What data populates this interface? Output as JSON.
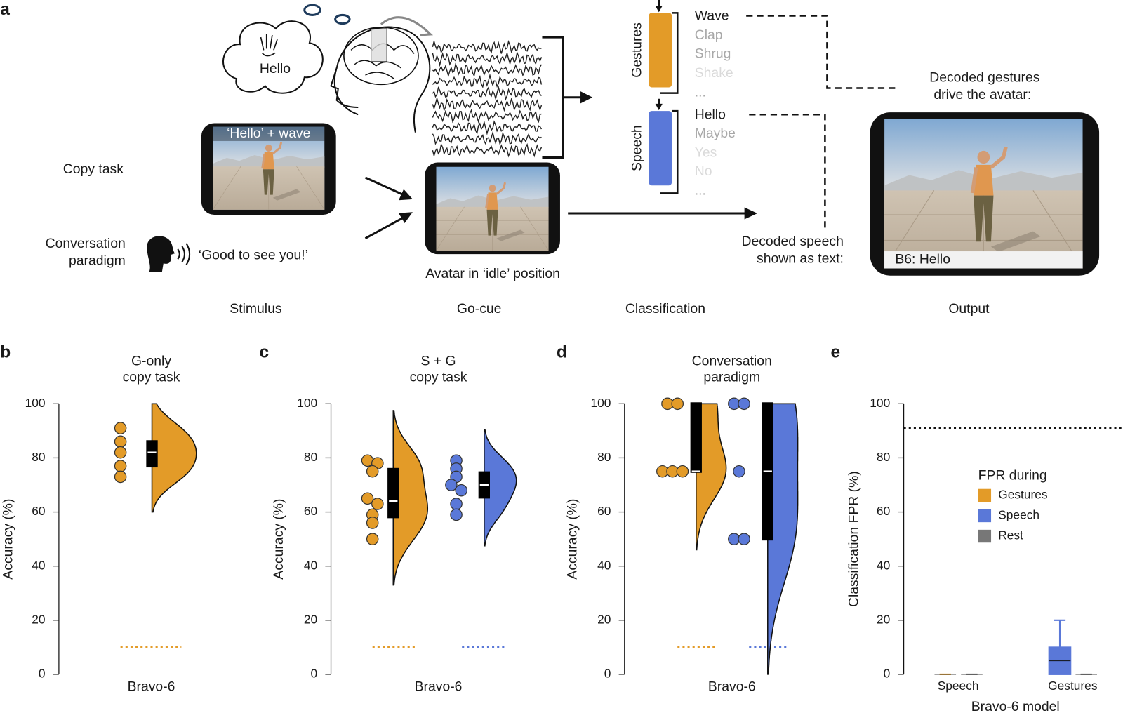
{
  "panel_a": {
    "label": "a",
    "thought": "Hello",
    "copy_stimulus_caption": "‘Hello’ + wave",
    "copy_task": "Copy task",
    "conversation": [
      "Conversation",
      "paradigm"
    ],
    "conversation_stimulus": "‘Good to see you!’",
    "go_cue_caption": "Avatar in ‘idle’ position",
    "gestures_label": "Gestures",
    "gesture_classes": [
      "Wave",
      "Clap",
      "Shrug",
      "Shake",
      "..."
    ],
    "speech_label": "Speech",
    "speech_classes": [
      "Hello",
      "Maybe",
      "Yes",
      "No",
      "..."
    ],
    "gesture_output": [
      "Decoded gestures",
      "drive the avatar:"
    ],
    "speech_output": [
      "Decoded speech",
      "shown as text:"
    ],
    "output_caption": "B6: Hello",
    "stages": [
      "Stimulus",
      "Go-cue",
      "Classification",
      "Output"
    ]
  },
  "chart_data": [
    {
      "type": "violin",
      "panel": "b",
      "title": [
        "G-only",
        "copy task"
      ],
      "y_label": "Accuracy (%)",
      "ylim": [
        0,
        100
      ],
      "yticks": [
        0,
        20,
        40,
        60,
        80,
        100
      ],
      "categories": [
        "Bravo-6"
      ],
      "series": [
        {
          "color": "#e39b28",
          "values": [
            91,
            86,
            82,
            77,
            73
          ],
          "chance": 10
        }
      ]
    },
    {
      "type": "violin",
      "panel": "c",
      "title": [
        "S + G",
        "copy task"
      ],
      "y_label": "Accuracy (%)",
      "ylim": [
        0,
        100
      ],
      "yticks": [
        0,
        20,
        40,
        60,
        80,
        100
      ],
      "categories": [
        "Bravo-6"
      ],
      "series": [
        {
          "color": "#e39b28",
          "values": [
            79,
            78,
            75,
            65,
            63,
            59,
            56,
            50
          ],
          "chance": 10
        },
        {
          "color": "#5a78d8",
          "values": [
            79,
            76,
            73,
            70,
            68,
            63,
            59
          ],
          "chance": 10
        }
      ]
    },
    {
      "type": "violin",
      "panel": "d",
      "title": [
        "Conversation",
        "paradigm"
      ],
      "y_label": "Accuracy (%)",
      "ylim": [
        0,
        100
      ],
      "yticks": [
        0,
        20,
        40,
        60,
        80,
        100
      ],
      "categories": [
        "Bravo-6"
      ],
      "series": [
        {
          "color": "#e39b28",
          "values": [
            100,
            100,
            75,
            75,
            75
          ],
          "chance": 10
        },
        {
          "color": "#5a78d8",
          "values": [
            100,
            100,
            75,
            50,
            50
          ],
          "chance": 10
        }
      ]
    },
    {
      "type": "box",
      "panel": "e",
      "y_label": "Classification FPR (%)",
      "x_label": "Bravo-6 model",
      "ylim": [
        0,
        100
      ],
      "yticks": [
        0,
        20,
        40,
        60,
        80,
        100
      ],
      "categories": [
        "Speech",
        "Gestures"
      ],
      "legend_title": "FPR during",
      "reference_line": 91,
      "series": [
        {
          "name": "Gestures",
          "color": "#e39b28",
          "median": [
            0,
            null
          ],
          "q1": [
            0,
            null
          ],
          "q3": [
            0,
            null
          ],
          "whisker_low": [
            0,
            null
          ],
          "whisker_high": [
            0,
            null
          ]
        },
        {
          "name": "Speech",
          "color": "#5a78d8",
          "median": [
            null,
            5
          ],
          "q1": [
            null,
            0
          ],
          "q3": [
            null,
            10
          ],
          "whisker_low": [
            null,
            0
          ],
          "whisker_high": [
            null,
            20
          ]
        },
        {
          "name": "Rest",
          "color": "#777777",
          "median": [
            0,
            0
          ],
          "q1": [
            0,
            0
          ],
          "q3": [
            0,
            0
          ],
          "whisker_low": [
            0,
            0
          ],
          "whisker_high": [
            0,
            0
          ]
        }
      ]
    }
  ]
}
